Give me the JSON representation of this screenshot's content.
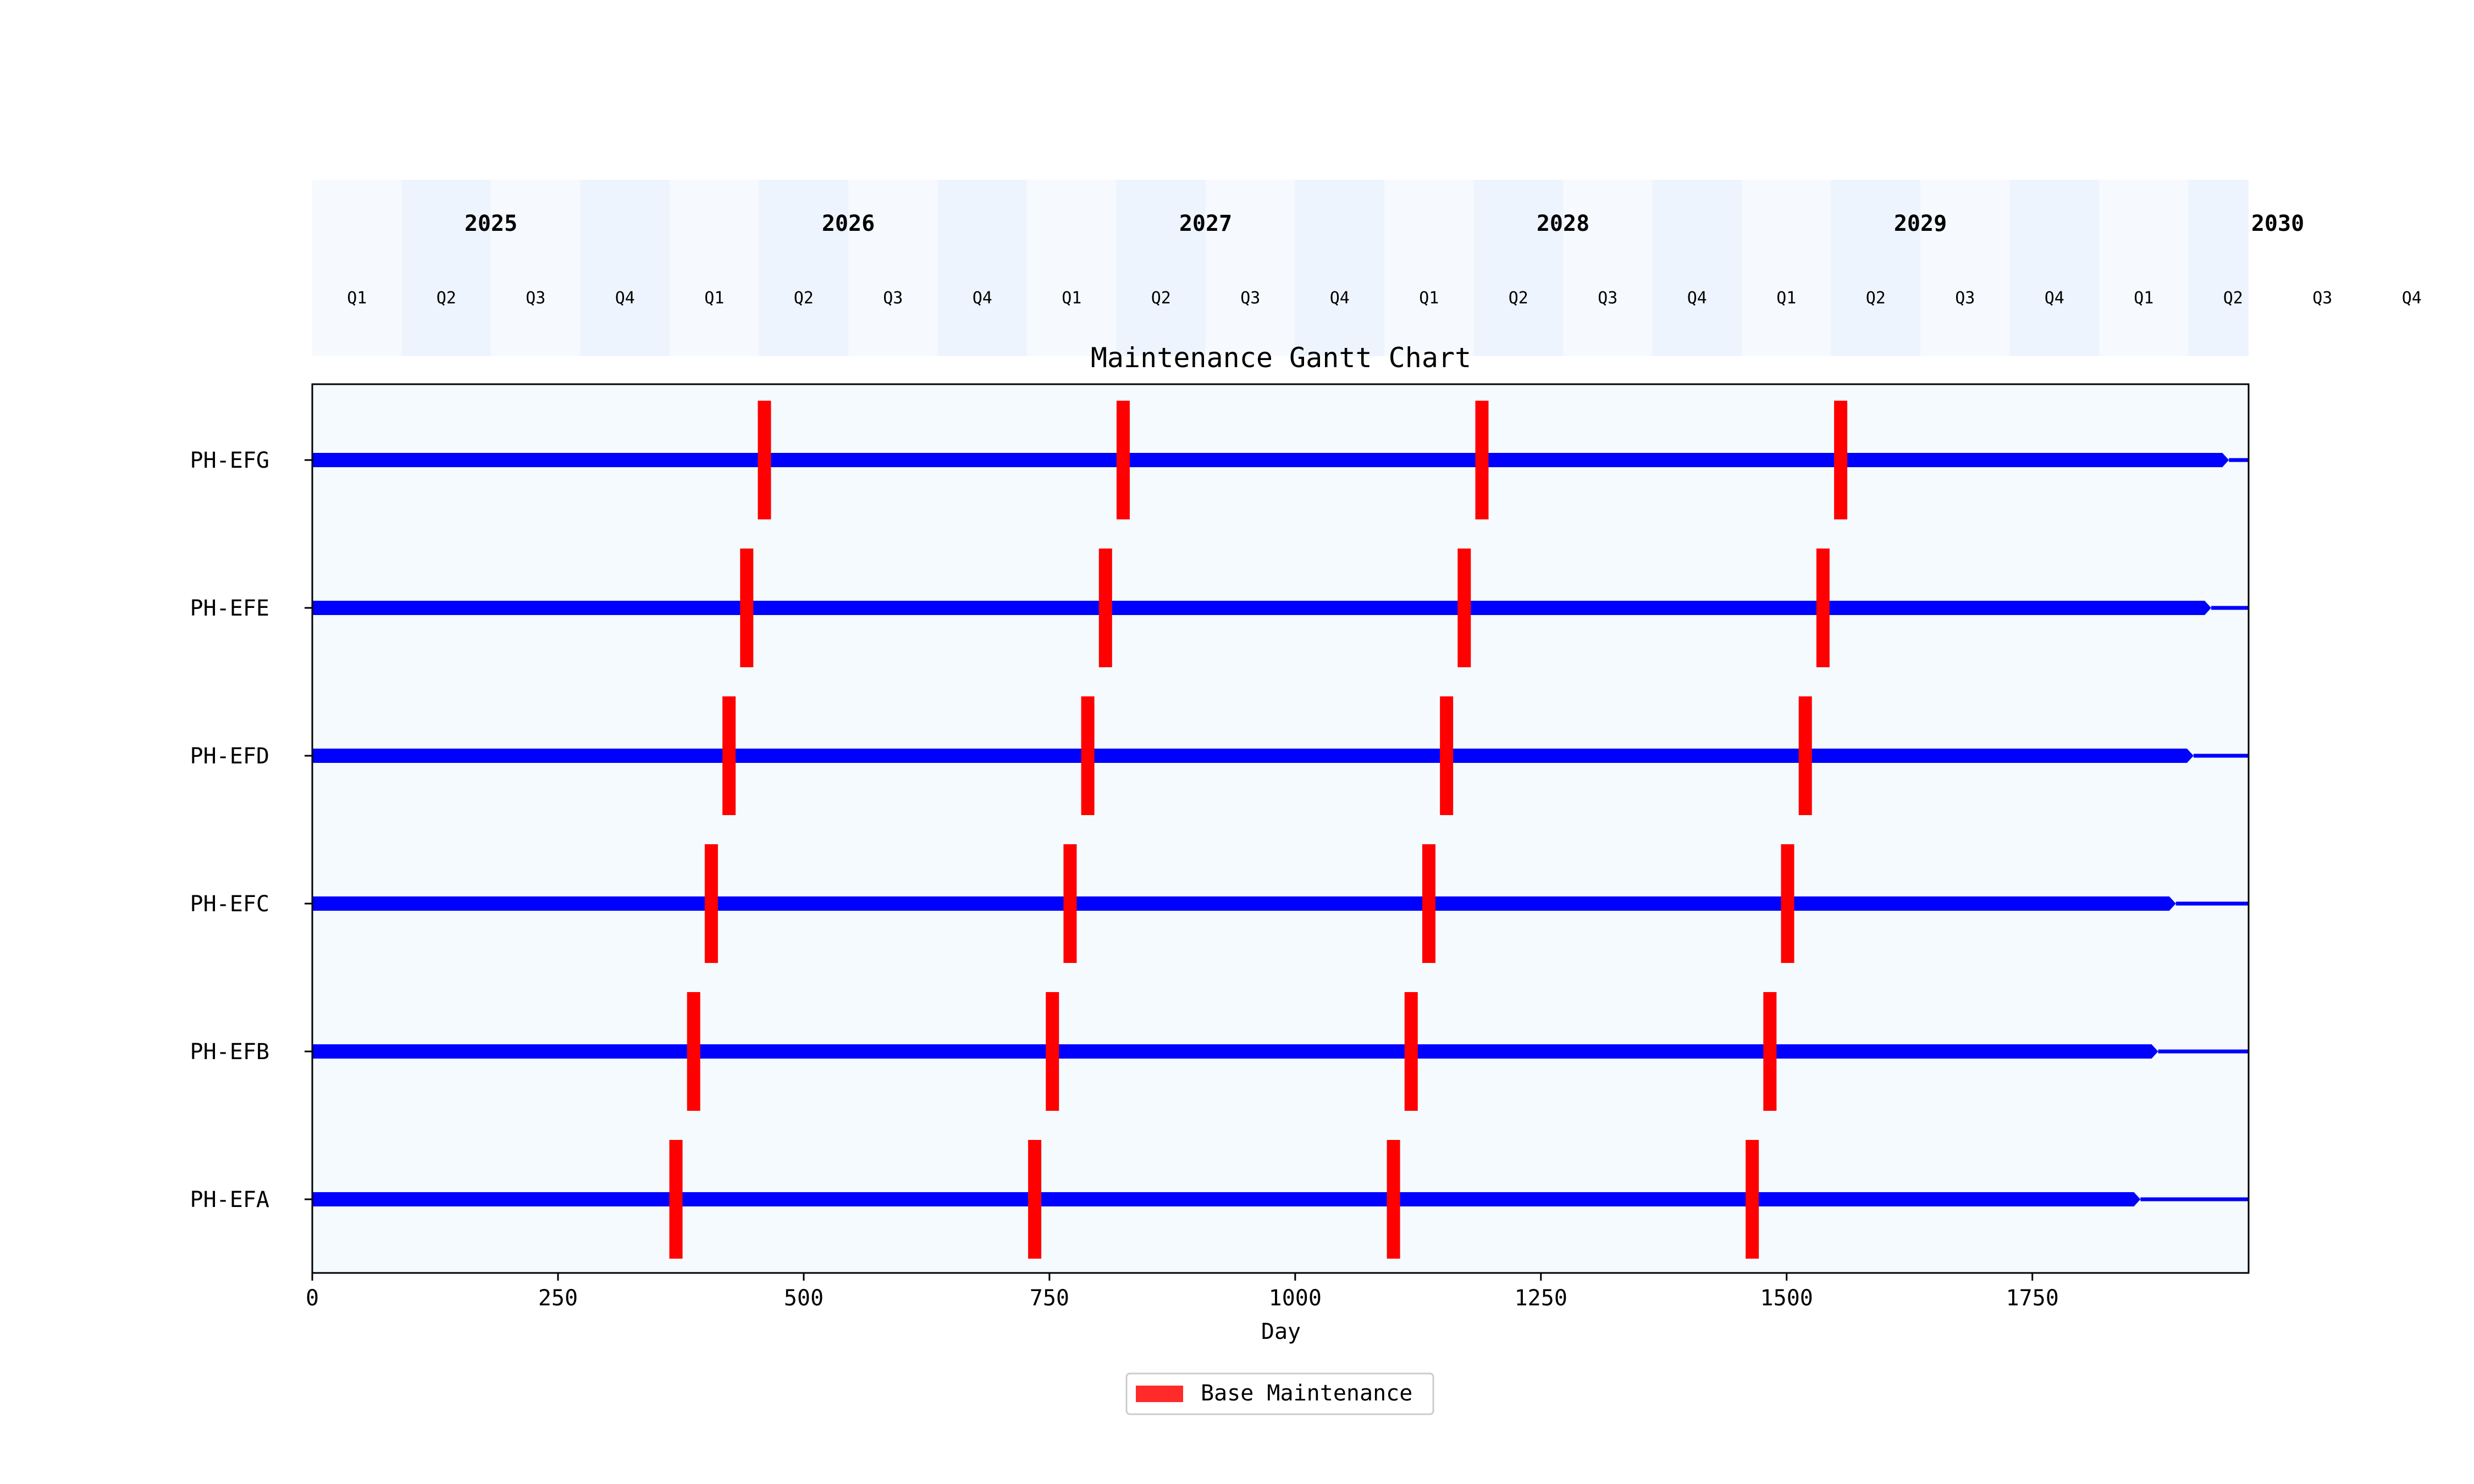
{
  "chart_data": {
    "type": "gantt",
    "title": "Maintenance Gantt Chart",
    "xlabel": "Day",
    "ylabel": "",
    "xlim": [
      0,
      1970
    ],
    "xticks": [
      0,
      250,
      500,
      750,
      1000,
      1250,
      1500,
      1750
    ],
    "grid": false,
    "legend": {
      "placement": "bottom-center",
      "label": "Base Maintenance",
      "color": "#ff2a2a"
    },
    "colors": {
      "timeline": "#0000ff",
      "maintenance": "#ff0000",
      "plot_bg": "#f4fafd"
    },
    "timeline_header": {
      "years": [
        {
          "label": "2025",
          "start_day": 0
        },
        {
          "label": "2026",
          "start_day": 365
        },
        {
          "label": "2027",
          "start_day": 730
        },
        {
          "label": "2028",
          "start_day": 1095
        },
        {
          "label": "2029",
          "start_day": 1460
        },
        {
          "label": "2030",
          "start_day": 1825
        }
      ],
      "quarters": [
        "Q1",
        "Q2",
        "Q3",
        "Q4"
      ],
      "quarter_count": 24
    },
    "aircraft": [
      {
        "name": "PH-EFA",
        "timeline_end": 1860,
        "maintenance_days": [
          370,
          735,
          1100,
          1465
        ]
      },
      {
        "name": "PH-EFB",
        "timeline_end": 1878,
        "maintenance_days": [
          388,
          753,
          1118,
          1483
        ]
      },
      {
        "name": "PH-EFC",
        "timeline_end": 1896,
        "maintenance_days": [
          406,
          771,
          1136,
          1501
        ]
      },
      {
        "name": "PH-EFD",
        "timeline_end": 1914,
        "maintenance_days": [
          424,
          789,
          1154,
          1519
        ]
      },
      {
        "name": "PH-EFE",
        "timeline_end": 1932,
        "maintenance_days": [
          442,
          807,
          1172,
          1537
        ]
      },
      {
        "name": "PH-EFG",
        "timeline_end": 1950,
        "maintenance_days": [
          460,
          825,
          1190,
          1555
        ]
      }
    ]
  }
}
